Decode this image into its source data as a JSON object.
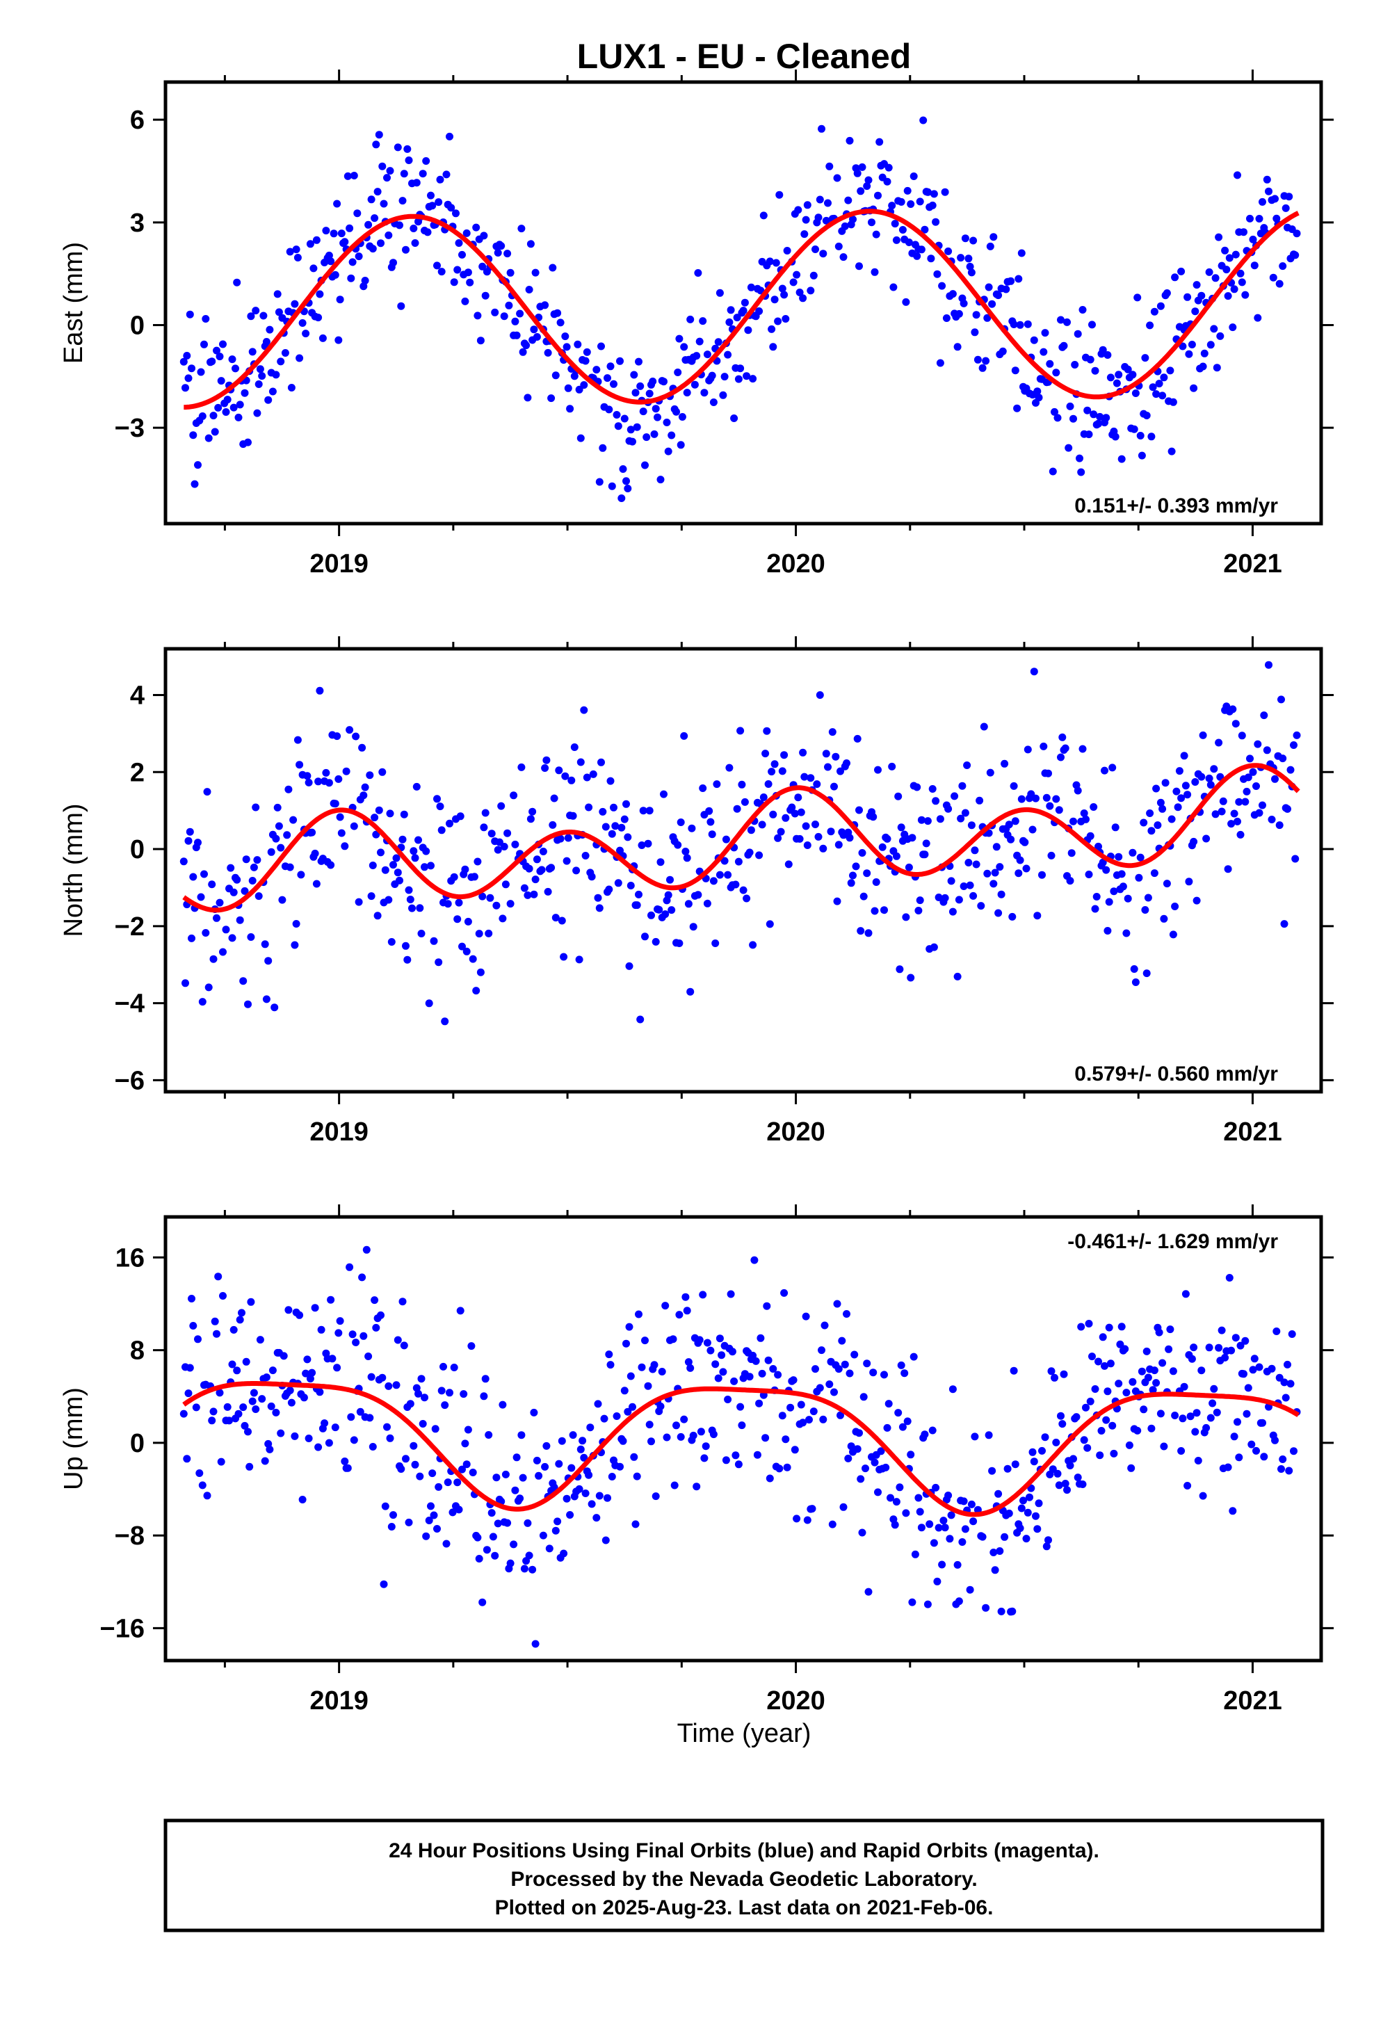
{
  "chart_data": {
    "type": "scatter",
    "title": "LUX1  - EU - Cleaned",
    "xlabel": "Time (year)",
    "xlim": [
      2018.62,
      2021.15
    ],
    "x_ticks": [
      2019,
      2020,
      2021
    ],
    "x_tick_labels": [
      "2019",
      "2020",
      "2021"
    ],
    "series_colors": {
      "positions": "#0000ff",
      "model": "#ff0000"
    },
    "panels": [
      {
        "ylabel": "East (mm)",
        "ylim": [
          -5.8,
          7.1
        ],
        "y_ticks": [
          -3,
          0,
          3,
          6
        ],
        "y_tick_labels": [
          "−3",
          "0",
          "3",
          "6"
        ],
        "rate_label": "0.151+/- 0.393 mm/yr",
        "rate_position": "bottom-right",
        "trend": 0.151,
        "model": {
          "offset": 0.35,
          "x0": 2018.66,
          "annual": [
            [
              -2.75,
              0.0
            ]
          ],
          "semiannual": [
            [
              0.0,
              0.0
            ]
          ]
        },
        "noise_sd": 1.05,
        "seed": 101
      },
      {
        "ylabel": "North (mm)",
        "ylim": [
          -6.3,
          5.2
        ],
        "y_ticks": [
          -6,
          -4,
          -2,
          0,
          2,
          4
        ],
        "y_tick_labels": [
          "−6",
          "−4",
          "−2",
          "0",
          "2",
          "4"
        ],
        "rate_label": "0.579+/- 0.560 mm/yr",
        "rate_position": "bottom-right",
        "trend": 0.579,
        "model": {
          "offset": -0.6,
          "x0": 2018.66,
          "annual": [
            [
              -0.25,
              0.35
            ]
          ],
          "semiannual": [
            [
              -0.4,
              -0.9
            ]
          ]
        },
        "noise_sd": 1.35,
        "seed": 202
      },
      {
        "ylabel": "Up (mm)",
        "ylim": [
          -18.8,
          19.5
        ],
        "y_ticks": [
          -16,
          -8,
          0,
          8,
          16
        ],
        "y_tick_labels": [
          "−16",
          "−8",
          "0",
          "8",
          "16"
        ],
        "rate_label": "-0.461+/- 1.629 mm/yr",
        "rate_position": "top-right",
        "trend": -0.461,
        "model": {
          "offset": 1.2,
          "x0": 2018.66,
          "annual": [
            [
              0.8,
              5.2
            ]
          ],
          "semiannual": [
            [
              1.3,
              -0.3
            ]
          ]
        },
        "noise_sd": 4.8,
        "seed": 303
      }
    ],
    "data_window": {
      "start": 2018.66,
      "end": 2021.1,
      "step_days": 1.25
    }
  },
  "footer": {
    "line1": "24 Hour Positions Using Final Orbits (blue) and Rapid Orbits (magenta).",
    "line2": "Processed by the Nevada Geodetic Laboratory.",
    "line3": "Plotted on 2025-Aug-23. Last data on 2021-Feb-06."
  }
}
